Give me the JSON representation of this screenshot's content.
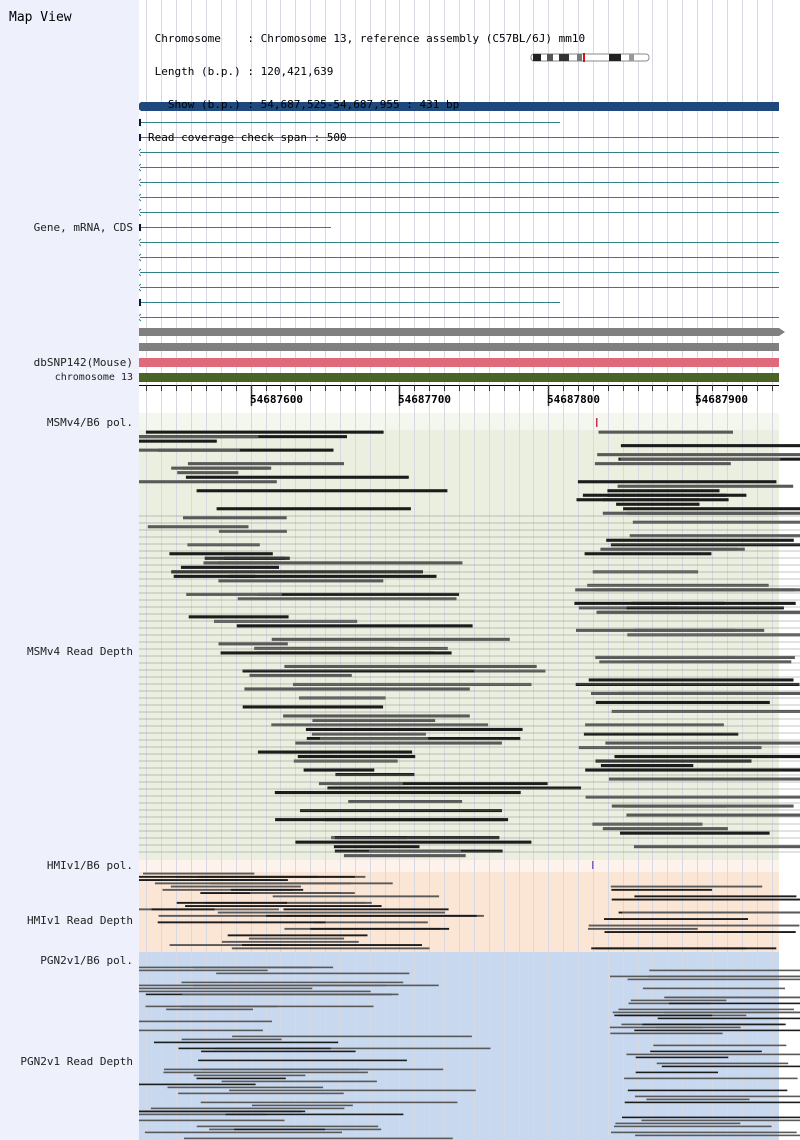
{
  "left_panel": {
    "title": "Map View",
    "track_labels": {
      "gene": "Gene, mRNA, CDS",
      "dbsnp": "dbSNP142(Mouse)",
      "chromosome": "chromosome 13",
      "msmv4_pol": "MSMv4/B6 pol.",
      "msmv4_depth": "MSMv4 Read Depth",
      "hmiv1_pol": "HMIv1/B6 pol.",
      "hmiv1_depth": "HMIv1 Read Depth",
      "pgn2v1_pol": "PGN2v1/B6 pol.",
      "pgn2v1_depth": "PGN2v1 Read Depth"
    }
  },
  "info": {
    "chromosome_line": " Chromosome    : Chromosome 13, reference assembly (C57BL/6J) mm10",
    "length_line": " Length (b.p.) : 120,421,639",
    "show_line": "   Show (b.p.) : 54,687,525-54,687,955 : 431 bp",
    "span_line": "Read coverage check span : 500"
  },
  "coordinate_axis": {
    "tick_labels": [
      "54687600",
      "54687700",
      "54687800",
      "54687900"
    ],
    "range_start": 54687525,
    "range_end": 54687955
  },
  "colors": {
    "left_panel_bg": "#eef0fb",
    "gene_main": "#1f497d",
    "mrna": "#2f7f86",
    "cds_gray": "#808080",
    "dbsnp": "#e06a7a",
    "chromosome": "#4a6428",
    "msmv4_bg": "#ebefdf",
    "hmiv1_bg": "#fbe6d6",
    "pgn2v1_bg": "#c8d8ee",
    "read_dark": "#1c1c1c",
    "read_mid": "#595959"
  }
}
